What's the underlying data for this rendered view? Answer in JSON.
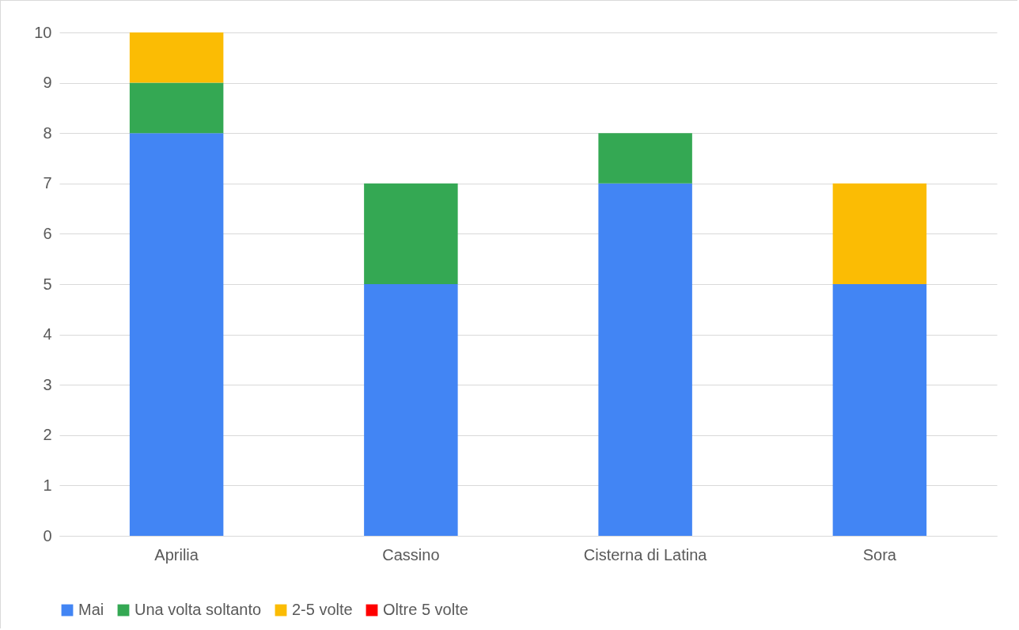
{
  "chart_data": {
    "type": "bar",
    "stacked": true,
    "categories": [
      "Aprilia",
      "Cassino",
      "Cisterna di Latina",
      "Sora"
    ],
    "series": [
      {
        "name": "Mai",
        "color": "#4285f4",
        "values": [
          8,
          5,
          7,
          5
        ]
      },
      {
        "name": "Una volta soltanto",
        "color": "#34a853",
        "values": [
          1,
          2,
          1,
          0
        ]
      },
      {
        "name": "2-5 volte",
        "color": "#fbbc04",
        "values": [
          1,
          0,
          0,
          2
        ]
      },
      {
        "name": "Oltre 5 volte",
        "color": "#ff0000",
        "values": [
          0,
          0,
          0,
          0
        ]
      }
    ],
    "ylim": [
      0,
      10
    ],
    "yticks": [
      0,
      1,
      2,
      3,
      4,
      5,
      6,
      7,
      8,
      9,
      10
    ],
    "grid": "y",
    "legend": "bottom"
  }
}
